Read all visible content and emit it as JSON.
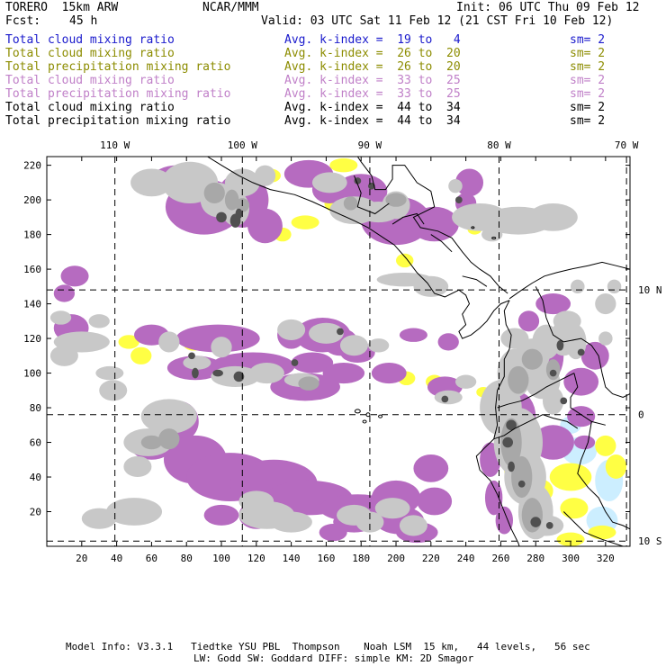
{
  "header": {
    "model": "TORERO  15km ARW",
    "center": "NCAR/MMM",
    "init": "Init: 06 UTC Thu 09 Feb 12",
    "fcst_label": "Fcst:",
    "fcst_value": "45 h",
    "valid": "Valid: 03 UTC Sat 11 Feb 12 (21 CST Fri 10 Feb 12)"
  },
  "legend": [
    {
      "field": "Total cloud mixing ratio",
      "kindex": "Avg. k-index =  19 to   4",
      "sm": "sm= 2",
      "color": "#1a1acc"
    },
    {
      "field": "Total cloud mixing ratio",
      "kindex": "Avg. k-index =  26 to  20",
      "sm": "sm= 2",
      "color": "#8c8c00"
    },
    {
      "field": "Total precipitation mixing ratio",
      "kindex": "Avg. k-index =  26 to  20",
      "sm": "sm= 2",
      "color": "#8c8c00"
    },
    {
      "field": "Total cloud mixing ratio",
      "kindex": "Avg. k-index =  33 to  25",
      "sm": "sm= 2",
      "color": "#c080c8"
    },
    {
      "field": "Total precipitation mixing ratio",
      "kindex": "Avg. k-index =  33 to  25",
      "sm": "sm= 2",
      "color": "#c080c8"
    },
    {
      "field": "Total cloud mixing ratio",
      "kindex": "Avg. k-index =  44 to  34",
      "sm": "sm= 2",
      "color": "#000000"
    },
    {
      "field": "Total precipitation mixing ratio",
      "kindex": "Avg. k-index =  44 to  34",
      "sm": "sm= 2",
      "color": "#000000"
    }
  ],
  "map": {
    "x_ticks": [
      20,
      40,
      60,
      80,
      100,
      120,
      140,
      160,
      180,
      200,
      220,
      240,
      260,
      280,
      300,
      320
    ],
    "y_ticks": [
      20,
      40,
      60,
      80,
      100,
      120,
      140,
      160,
      180,
      200,
      220
    ],
    "x_range": [
      0,
      334
    ],
    "y_range": [
      0,
      225
    ],
    "lon_labels": [
      {
        "label": "110 W",
        "x": 39
      },
      {
        "label": "100 W",
        "x": 112
      },
      {
        "label": "90 W",
        "x": 185
      },
      {
        "label": "80 W",
        "x": 259
      },
      {
        "label": "70 W",
        "x": 332
      }
    ],
    "lat_labels": [
      {
        "label": "10 N",
        "y": 148
      },
      {
        "label": "0",
        "y": 76
      },
      {
        "label": "10 S",
        "y": 3
      }
    ],
    "colors": {
      "gray_light": "#c8c8c8",
      "gray_mid": "#a8a8a8",
      "gray_dark": "#505050",
      "purple": "#b66bc0",
      "yellow": "#ffff44",
      "lightblue": "#cceeff",
      "coast": "#000000",
      "grid": "#000000"
    }
  },
  "footer": {
    "line1": "Model Info: V3.3.1   Tiedtke YSU PBL  Thompson    Noah LSM  15 km,   44 levels,   56 sec",
    "line2": "LW: Godd SW: Goddard DIFF: simple KM: 2D Smagor"
  }
}
